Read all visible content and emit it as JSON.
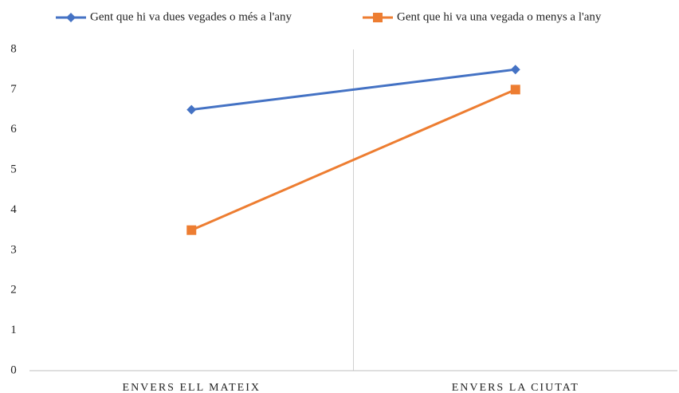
{
  "chart_data": {
    "type": "line",
    "categories": [
      "ENVERS ELL MATEIX",
      "ENVERS LA CIUTAT"
    ],
    "series": [
      {
        "name": "Gent que hi va dues vegades o més a l'any",
        "color": "#4472c4",
        "marker": "diamond",
        "values": [
          6.5,
          7.5
        ]
      },
      {
        "name": "Gent que hi va una vegada o menys a l'any",
        "color": "#ed7d31",
        "marker": "square",
        "values": [
          3.5,
          7.0
        ]
      }
    ],
    "ylim": [
      0,
      8
    ],
    "yticks": [
      0,
      1,
      2,
      3,
      4,
      5,
      6,
      7,
      8
    ],
    "legend": "top"
  }
}
